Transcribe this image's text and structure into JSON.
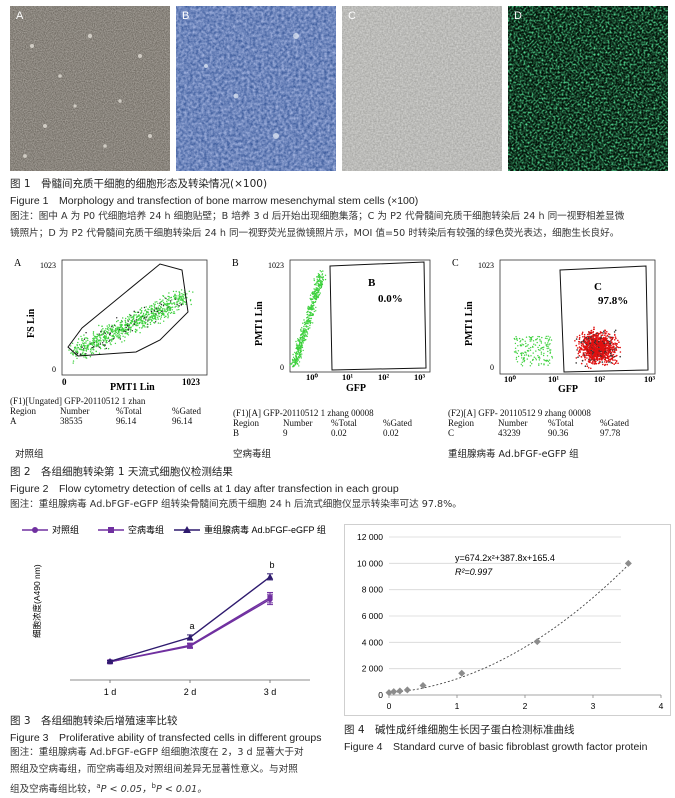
{
  "fig1": {
    "panels": [
      "A",
      "B",
      "C",
      "D"
    ],
    "caption_cn": "图 1　骨髓间充质干细胞的细胞形态及转染情况(×100)",
    "caption_en": "Figure 1　Morphology and transfection of bone marrow mesenchymal stem cells (×100)",
    "note_line1": "图注：图中 A 为 P0 代细胞培养 24 h 细胞贴壁；B 培养 3 d 后开始出现细胞集落；C 为 P2 代骨髓间充质干细胞转染后 24 h 同一视野相差显微",
    "note_line2": "镜照片；D 为 P2 代骨髓间充质干细胞转染后 24 h 同一视野荧光显微镜照片示，MOI 值=50 时转染后有较强的绿色荧光表达，细胞生长良好。"
  },
  "fig2": {
    "panels": [
      {
        "letter": "A",
        "y_label": "FS Lin",
        "x_label": "PMT1 Lin",
        "y_ticks": [
          "1023",
          "0"
        ],
        "x_ticks": [
          "0",
          "1023"
        ],
        "header": "(F1)[Ungated] GFP-20110512   1 zhan",
        "cols": [
          "Region",
          "Number",
          "%Total",
          "%Gated"
        ],
        "vals": [
          "A",
          "38535",
          "96.14",
          "96.14"
        ],
        "group": "对照组"
      },
      {
        "letter": "B",
        "y_label": "PMT1 Lin",
        "x_label": "GFP",
        "y_ticks": [
          "1023",
          "0"
        ],
        "x_ticks": [
          "10⁰",
          "10¹",
          "10²",
          "10³"
        ],
        "region_label": "B",
        "region_pct": "0.0%",
        "header": "(F1)[A] GFP-20110512   1 zhang 00008",
        "cols": [
          "Region",
          "Number",
          "%Total",
          "%Gated"
        ],
        "vals": [
          "B",
          "9",
          "0.02",
          "0.02"
        ],
        "group": "空病毒组"
      },
      {
        "letter": "C",
        "y_label": "PMT1 Lin",
        "x_label": "GFP",
        "y_ticks": [
          "1023",
          "0"
        ],
        "x_ticks": [
          "10⁰",
          "10¹",
          "10²",
          "10³"
        ],
        "region_label": "C",
        "region_pct": "97.8%",
        "header": "(F2)[A] GFP- 20110512 9 zhang 00008",
        "cols": [
          "Region",
          "Number",
          "%Total",
          "%Gated"
        ],
        "vals": [
          "C",
          "43239",
          "90.36",
          "97.78"
        ],
        "group": "重组腺病毒 Ad.bFGF-eGFP 组"
      }
    ],
    "caption_cn": "图 2　各组细胞转染第 1 天流式细胞仪检测结果",
    "caption_en": "Figure 2　Flow cytometry detection of cells at 1 day after transfection in each group",
    "note": "图注：重组腺病毒 Ad.bFGF-eGFP 组转染骨髓间充质干细胞 24 h 后流式细胞仪显示转染率可达 97.8%。"
  },
  "chart_data": [
    {
      "type": "line",
      "categories": [
        "1 d",
        "2 d",
        "3 d"
      ],
      "ylabel": "细胞浓度(A490 nm)",
      "ylim": [
        0,
        3
      ],
      "series": [
        {
          "name": "对照组",
          "values": [
            0.42,
            0.78,
            1.86
          ],
          "errors": [
            0.02,
            0.05,
            0.12
          ],
          "color": "#7030a0",
          "marker": "circle"
        },
        {
          "name": "空病毒组",
          "values": [
            0.42,
            0.8,
            1.9
          ],
          "errors": [
            0.02,
            0.05,
            0.12
          ],
          "color": "#7030a0",
          "marker": "square"
        },
        {
          "name": "重组腺病毒 Ad.bFGF-eGFP 组",
          "values": [
            0.43,
            0.98,
            2.38
          ],
          "errors": [
            0.02,
            0.06,
            0.07
          ],
          "color": "#2e1a6e",
          "marker": "triangle"
        }
      ],
      "annotations": [
        {
          "x": "2 d",
          "text": "a"
        },
        {
          "x": "3 d",
          "text": "b"
        }
      ],
      "caption_cn": "图 3　各组细胞转染后增殖速率比较",
      "caption_en": "Figure 3　Proliferative ability of transfected cells in different groups",
      "note_line1": "图注：重组腺病毒 Ad.bFGF-eGFP 组细胞浓度在 2，3 d 显著大于对",
      "note_line2": "照组及空病毒组，而空病毒组及对照组间差异无显著性意义。与对照",
      "note_line3": "组及空病毒组比较，",
      "note_sig_a": "a",
      "note_sig_a_text": "P < 0.05，",
      "note_sig_b": "b",
      "note_sig_b_text": "P < 0.01。"
    },
    {
      "type": "scatter",
      "x_ticks": [
        "0",
        "1",
        "2",
        "3",
        "4"
      ],
      "y_ticks": [
        "0",
        "2 000",
        "4 000",
        "6 000",
        "8 000",
        "10 000",
        "12 000"
      ],
      "xlim": [
        0,
        4
      ],
      "ylim": [
        0,
        12000
      ],
      "x": [
        0.0,
        0.07,
        0.16,
        0.27,
        0.5,
        1.07,
        2.18,
        3.52
      ],
      "y": [
        180,
        260,
        300,
        390,
        720,
        1650,
        4050,
        10000
      ],
      "fit": {
        "a": 674.2,
        "b": 387.8,
        "c": 165.4
      },
      "equation": "y=674.2x²+387.8x+165.4",
      "r2": "R²=0.997",
      "caption_cn": "图 4　碱性成纤维细胞生长因子蛋白检测标准曲线",
      "caption_en": "Figure 4　Standard curve of basic fibroblast growth factor protein"
    }
  ]
}
